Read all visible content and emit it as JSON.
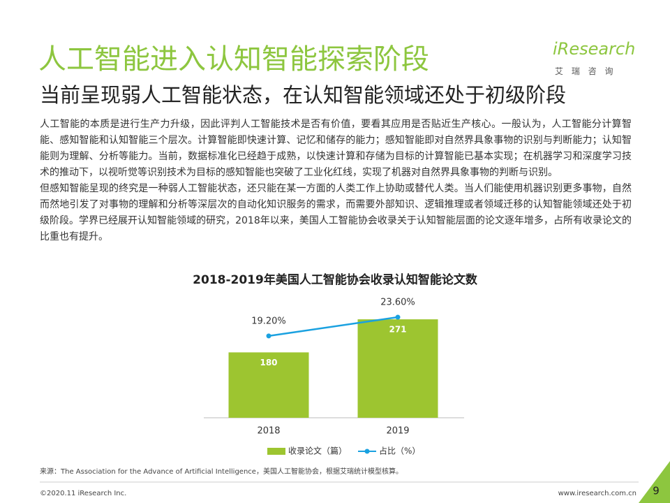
{
  "header": {
    "title": "人工智能进入认知智能探索阶段",
    "subtitle": "当前呈现弱人工智能状态，在认知智能领域还处于初级阶段",
    "logo": "iResearch",
    "logo_sub": "艾 瑞 咨 询"
  },
  "body": {
    "paragraphs": [
      "人工智能的本质是进行生产力升级，因此评判人工智能技术是否有价值，要看其应用是否贴近生产核心。一般认为，人工智能分计算智能、感知智能和认知智能三个层次。计算智能即快速计算、记忆和储存的能力；感知智能即对自然界具象事物的识别与判断能力；认知智能则为理解、分析等能力。当前，数据标准化已经趋于成熟，以快速计算和存储为目标的计算智能已基本实现；在机器学习和深度学习技术的推动下，以视听觉等识别技术为目标的感知智能也突破了工业化红线，实现了机器对自然界具象事物的判断与识别。",
      "但感知智能呈现的终究是一种弱人工智能状态，还只能在某一方面的人类工作上协助或替代人类。当人们能使用机器识别更多事物，自然而然地引发了对事物的理解和分析等深层次的自动化知识服务的需求，而需要外部知识、逻辑推理或者领域迁移的认知智能领域还处于初级阶段。学界已经展开认知智能领域的研究，2018年以来，美国人工智能协会收录关于认知智能层面的论文逐年增多，占所有收录论文的比重也有提升。"
    ]
  },
  "chart_data": {
    "type": "bar",
    "title": "2018-2019年美国人工智能协会收录认知智能论文数",
    "categories": [
      "2018",
      "2019"
    ],
    "series": [
      {
        "name": "收录论文（篇）",
        "type": "bar",
        "color": "#9dc530",
        "values": [
          180,
          271
        ]
      },
      {
        "name": "占比（%）",
        "type": "line",
        "color": "#1aa1e0",
        "axis": "y2",
        "values": [
          19.2,
          23.6
        ],
        "value_labels": [
          "19.20%",
          "23.60%"
        ]
      }
    ],
    "legend": "bottom"
  },
  "footer": {
    "source": "来源：The Association for the Advance of Artificial Intelligence，美国人工智能协会，根据艾瑞统计模型核算。",
    "copyright": "©2020.11 iResearch Inc.",
    "url": "www.iresearch.com.cn",
    "page": "9"
  }
}
